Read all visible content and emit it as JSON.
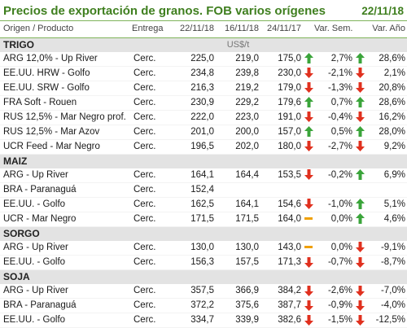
{
  "header": {
    "title": "Precios de exportación de granos. FOB varios orígenes",
    "date": "22/11/18"
  },
  "columns": {
    "product": "Origen / Producto",
    "delivery": "Entrega",
    "d1": "22/11/18",
    "d2": "16/11/18",
    "d3": "24/11/17",
    "week": "Var. Sem.",
    "year": "Var. Año"
  },
  "colors": {
    "up": "#3aa43a",
    "down": "#e0301e",
    "flat": "#f0a000",
    "accent": "#3f7f1f"
  },
  "groups": [
    {
      "name": "TRIGO",
      "unit": "US$/t",
      "rows": [
        {
          "product": "ARG 12,0% - Up River",
          "delivery": "Cerc.",
          "v1": "225,0",
          "v2": "219,0",
          "v3": "175,0",
          "week": "2,7%",
          "year": "28,6%",
          "i3": "up",
          "iw": "up"
        },
        {
          "product": "EE.UU. HRW - Golfo",
          "delivery": "Cerc.",
          "v1": "234,8",
          "v2": "239,8",
          "v3": "230,0",
          "week": "-2,1%",
          "year": "2,1%",
          "i3": "down",
          "iw": "down"
        },
        {
          "product": "EE.UU. SRW - Golfo",
          "delivery": "Cerc.",
          "v1": "216,3",
          "v2": "219,2",
          "v3": "179,0",
          "week": "-1,3%",
          "year": "20,8%",
          "i3": "down",
          "iw": "down"
        },
        {
          "product": "FRA Soft - Rouen",
          "delivery": "Cerc.",
          "v1": "230,9",
          "v2": "229,2",
          "v3": "179,6",
          "week": "0,7%",
          "year": "28,6%",
          "i3": "up",
          "iw": "up"
        },
        {
          "product": "RUS 12,5% - Mar Negro prof.",
          "delivery": "Cerc.",
          "v1": "222,0",
          "v2": "223,0",
          "v3": "191,0",
          "week": "-0,4%",
          "year": "16,2%",
          "i3": "down",
          "iw": "down"
        },
        {
          "product": "RUS 12,5% - Mar Azov",
          "delivery": "Cerc.",
          "v1": "201,0",
          "v2": "200,0",
          "v3": "157,0",
          "week": "0,5%",
          "year": "28,0%",
          "i3": "up",
          "iw": "up"
        },
        {
          "product": "UCR Feed - Mar Negro",
          "delivery": "Cerc.",
          "v1": "196,5",
          "v2": "202,0",
          "v3": "180,0",
          "week": "-2,7%",
          "year": "9,2%",
          "i3": "down",
          "iw": "down"
        }
      ]
    },
    {
      "name": "MAIZ",
      "unit": "",
      "rows": [
        {
          "product": "ARG - Up River",
          "delivery": "Cerc.",
          "v1": "164,1",
          "v2": "164,4",
          "v3": "153,5",
          "week": "-0,2%",
          "year": "6,9%",
          "i3": "down",
          "iw": "up"
        },
        {
          "product": "BRA - Paranaguá",
          "delivery": "Cerc.",
          "v1": "152,4",
          "v2": "",
          "v3": "",
          "week": "",
          "year": "",
          "i3": "",
          "iw": ""
        },
        {
          "product": "EE.UU. - Golfo",
          "delivery": "Cerc.",
          "v1": "162,5",
          "v2": "164,1",
          "v3": "154,6",
          "week": "-1,0%",
          "year": "5,1%",
          "i3": "down",
          "iw": "up"
        },
        {
          "product": "UCR - Mar Negro",
          "delivery": "Cerc.",
          "v1": "171,5",
          "v2": "171,5",
          "v3": "164,0",
          "week": "0,0%",
          "year": "4,6%",
          "i3": "flat",
          "iw": "up"
        }
      ]
    },
    {
      "name": "SORGO",
      "unit": "",
      "rows": [
        {
          "product": "ARG - Up River",
          "delivery": "Cerc.",
          "v1": "130,0",
          "v2": "130,0",
          "v3": "143,0",
          "week": "0,0%",
          "year": "-9,1%",
          "i3": "flat",
          "iw": "down"
        },
        {
          "product": "EE.UU. - Golfo",
          "delivery": "Cerc.",
          "v1": "156,3",
          "v2": "157,5",
          "v3": "171,3",
          "week": "-0,7%",
          "year": "-8,7%",
          "i3": "down",
          "iw": "down"
        }
      ]
    },
    {
      "name": "SOJA",
      "unit": "",
      "rows": [
        {
          "product": "ARG - Up River",
          "delivery": "Cerc.",
          "v1": "357,5",
          "v2": "366,9",
          "v3": "384,2",
          "week": "-2,6%",
          "year": "-7,0%",
          "i3": "down",
          "iw": "down"
        },
        {
          "product": "BRA - Paranaguá",
          "delivery": "Cerc.",
          "v1": "372,2",
          "v2": "375,6",
          "v3": "387,7",
          "week": "-0,9%",
          "year": "-4,0%",
          "i3": "down",
          "iw": "down"
        },
        {
          "product": "EE.UU. - Golfo",
          "delivery": "Cerc.",
          "v1": "334,7",
          "v2": "339,9",
          "v3": "382,6",
          "week": "-1,5%",
          "year": "-12,5%",
          "i3": "down",
          "iw": "down"
        }
      ]
    }
  ]
}
